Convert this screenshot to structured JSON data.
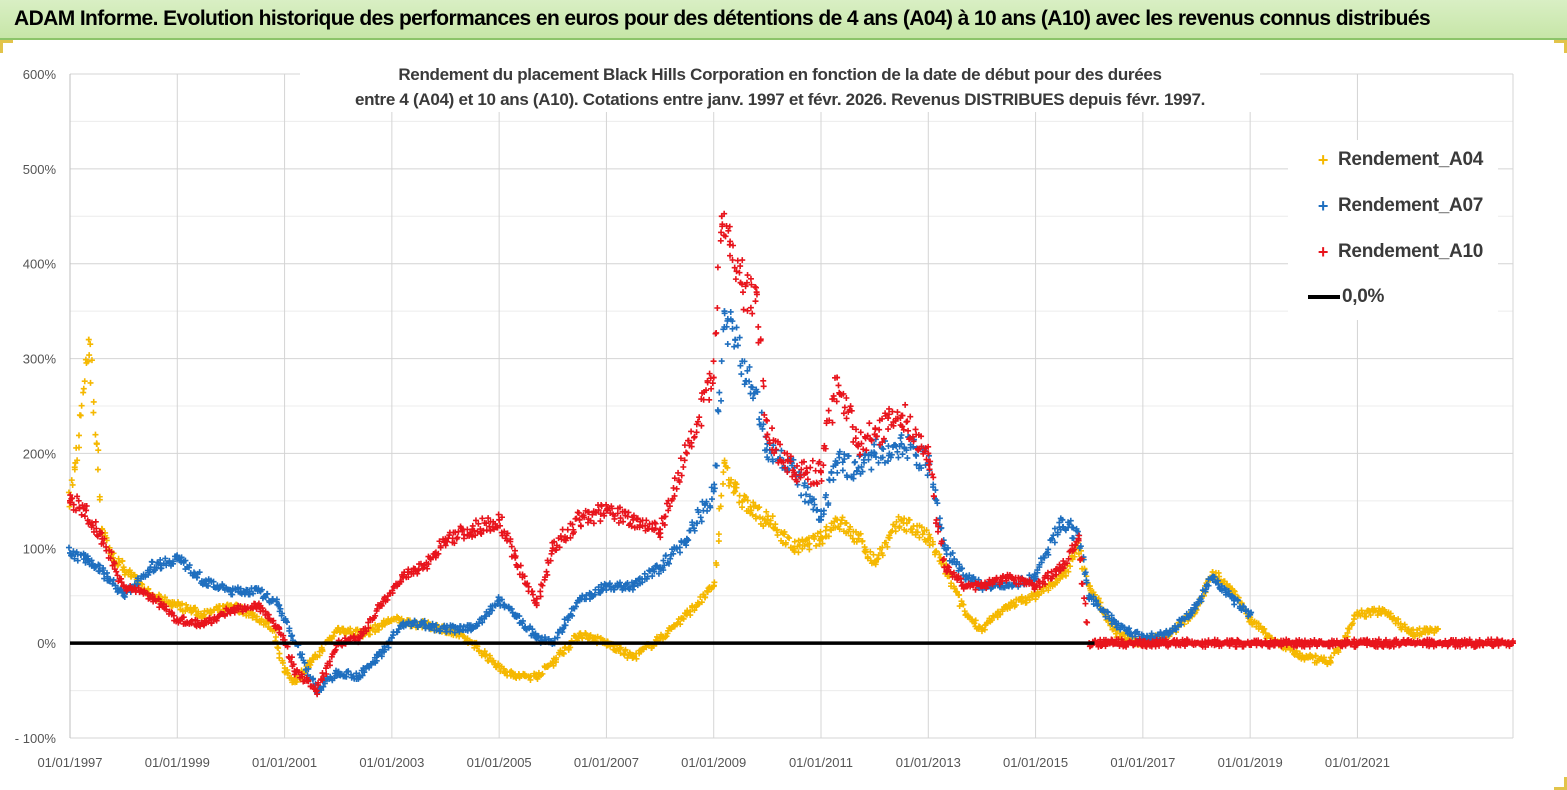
{
  "banner": {
    "title": "ADAM Informe. Evolution historique des performances en euros pour des détentions de 4 ans (A04) à 10 ans (A10) avec les revenus connus distribués"
  },
  "chart_data": {
    "type": "scatter",
    "title_line1": "Rendement du placement Black Hills Corporation en fonction de la date de début pour des durées",
    "title_line2": "entre 4 (A04) et 10 ans (A10). Cotations entre janv. 1997 et févr. 2026. Revenus DISTRIBUES depuis févr. 1997.",
    "xlabel": "",
    "ylabel": "",
    "xlim": [
      1997.0,
      2023.9
    ],
    "ylim": [
      -100,
      600
    ],
    "y_ticks": [
      -100,
      0,
      100,
      200,
      300,
      400,
      500,
      600
    ],
    "y_tick_labels": [
      "- 100%",
      "0%",
      "100%",
      "200%",
      "300%",
      "400%",
      "500%",
      "600%"
    ],
    "x_ticks": [
      1997,
      1999,
      2001,
      2003,
      2005,
      2007,
      2009,
      2011,
      2013,
      2015,
      2017,
      2019,
      2021
    ],
    "x_tick_labels": [
      "01/01/1997",
      "01/01/1999",
      "01/01/2001",
      "01/01/2003",
      "01/01/2005",
      "01/01/2007",
      "01/01/2009",
      "01/01/2011",
      "01/01/2013",
      "01/01/2015",
      "01/01/2017",
      "01/01/2019",
      "01/01/2021"
    ],
    "grid": true,
    "legend_position": "top-right",
    "series": [
      {
        "name": "Rendement_A04",
        "color": "#f5b800",
        "marker": "+",
        "x": [
          1997.0,
          1997.1,
          1997.2,
          1997.35,
          1997.5,
          1997.6,
          1997.8,
          1998.0,
          1998.5,
          1999.0,
          1999.5,
          2000.0,
          2000.4,
          2000.8,
          2001.0,
          2001.2,
          2001.5,
          2002.0,
          2002.5,
          2003.0,
          2003.5,
          2004.0,
          2004.5,
          2005.0,
          2005.3,
          2005.7,
          2006.0,
          2006.5,
          2007.0,
          2007.5,
          2008.0,
          2008.5,
          2009.0,
          2009.2,
          2009.4,
          2009.7,
          2010.0,
          2010.5,
          2011.0,
          2011.3,
          2011.7,
          2012.0,
          2012.5,
          2013.0,
          2013.3,
          2013.7,
          2014.0,
          2014.5,
          2015.0,
          2015.5,
          2015.8,
          2016.0,
          2016.5,
          2017.0,
          2017.5,
          2018.0,
          2018.3,
          2018.7,
          2019.0,
          2019.5,
          2020.0,
          2020.5,
          2021.0,
          2021.5,
          2022.0,
          2022.5
        ],
        "values": [
          150,
          190,
          240,
          320,
          210,
          120,
          90,
          80,
          50,
          40,
          30,
          40,
          30,
          15,
          -30,
          -40,
          -20,
          15,
          10,
          25,
          20,
          15,
          0,
          -25,
          -35,
          -35,
          -20,
          10,
          0,
          -15,
          5,
          30,
          60,
          190,
          160,
          140,
          130,
          100,
          110,
          130,
          110,
          85,
          130,
          110,
          80,
          30,
          15,
          40,
          50,
          70,
          100,
          60,
          10,
          0,
          10,
          35,
          75,
          55,
          25,
          0,
          -15,
          -20,
          30,
          35,
          10,
          15
        ]
      },
      {
        "name": "Rendement_A07",
        "color": "#1f6fbf",
        "marker": "+",
        "x": [
          1997.0,
          1997.3,
          1997.7,
          1998.0,
          1998.5,
          1999.0,
          1999.5,
          2000.0,
          2000.5,
          2000.9,
          2001.2,
          2001.6,
          2002.0,
          2002.4,
          2002.8,
          2003.2,
          2003.6,
          2004.0,
          2004.5,
          2005.0,
          2005.3,
          2005.7,
          2006.0,
          2006.5,
          2007.0,
          2007.5,
          2008.0,
          2008.5,
          2009.0,
          2009.2,
          2009.4,
          2009.7,
          2010.0,
          2010.5,
          2011.0,
          2011.3,
          2011.7,
          2012.0,
          2012.5,
          2013.0,
          2013.3,
          2013.7,
          2014.0,
          2014.5,
          2015.0,
          2015.5,
          2015.8,
          2016.0,
          2016.5,
          2017.0,
          2017.5,
          2018.0,
          2018.3,
          2018.7,
          2019.0
        ],
        "values": [
          95,
          90,
          70,
          50,
          80,
          90,
          65,
          55,
          55,
          40,
          0,
          -50,
          -30,
          -35,
          -10,
          20,
          20,
          15,
          15,
          45,
          30,
          5,
          0,
          45,
          60,
          60,
          80,
          110,
          160,
          350,
          320,
          270,
          210,
          180,
          130,
          190,
          185,
          200,
          210,
          190,
          100,
          70,
          60,
          60,
          70,
          130,
          110,
          50,
          20,
          5,
          10,
          40,
          70,
          45,
          30
        ]
      },
      {
        "name": "Rendement_A10",
        "color": "#e8141c",
        "marker": "+",
        "x": [
          1997.0,
          1997.3,
          1997.6,
          1998.0,
          1998.5,
          1999.0,
          1999.5,
          2000.0,
          2000.5,
          2000.9,
          2001.2,
          2001.6,
          2002.0,
          2002.4,
          2002.8,
          2003.2,
          2003.6,
          2004.0,
          2004.5,
          2005.0,
          2005.3,
          2005.7,
          2006.0,
          2006.5,
          2007.0,
          2007.5,
          2008.0,
          2008.5,
          2009.0,
          2009.15,
          2009.3,
          2009.5,
          2009.8,
          2010.0,
          2010.5,
          2011.0,
          2011.3,
          2011.7,
          2012.0,
          2012.5,
          2013.0,
          2013.3,
          2013.7,
          2014.0,
          2014.5,
          2015.0,
          2015.5,
          2015.8,
          2016.0,
          2016.5,
          2017.0,
          2017.5,
          2018.0,
          2018.5,
          2019.0,
          2019.5,
          2020.0,
          2020.5,
          2021.0,
          2021.5,
          2022.0,
          2022.5,
          2023.0,
          2023.5,
          2023.9
        ],
        "values": [
          150,
          140,
          110,
          60,
          50,
          25,
          20,
          35,
          40,
          15,
          -30,
          -50,
          0,
          5,
          40,
          70,
          80,
          110,
          120,
          130,
          90,
          40,
          100,
          130,
          140,
          130,
          120,
          200,
          280,
          450,
          420,
          380,
          370,
          220,
          180,
          180,
          280,
          210,
          220,
          240,
          200,
          80,
          60,
          60,
          70,
          60,
          80,
          110,
          0,
          0,
          0,
          0,
          0,
          0,
          0,
          0,
          0,
          0,
          0,
          0,
          0,
          0,
          0,
          0,
          0
        ]
      },
      {
        "name": "0,0%",
        "color": "#000000",
        "type": "line",
        "x": [
          1997.0,
          2016.1
        ],
        "values": [
          0,
          0
        ]
      }
    ]
  }
}
